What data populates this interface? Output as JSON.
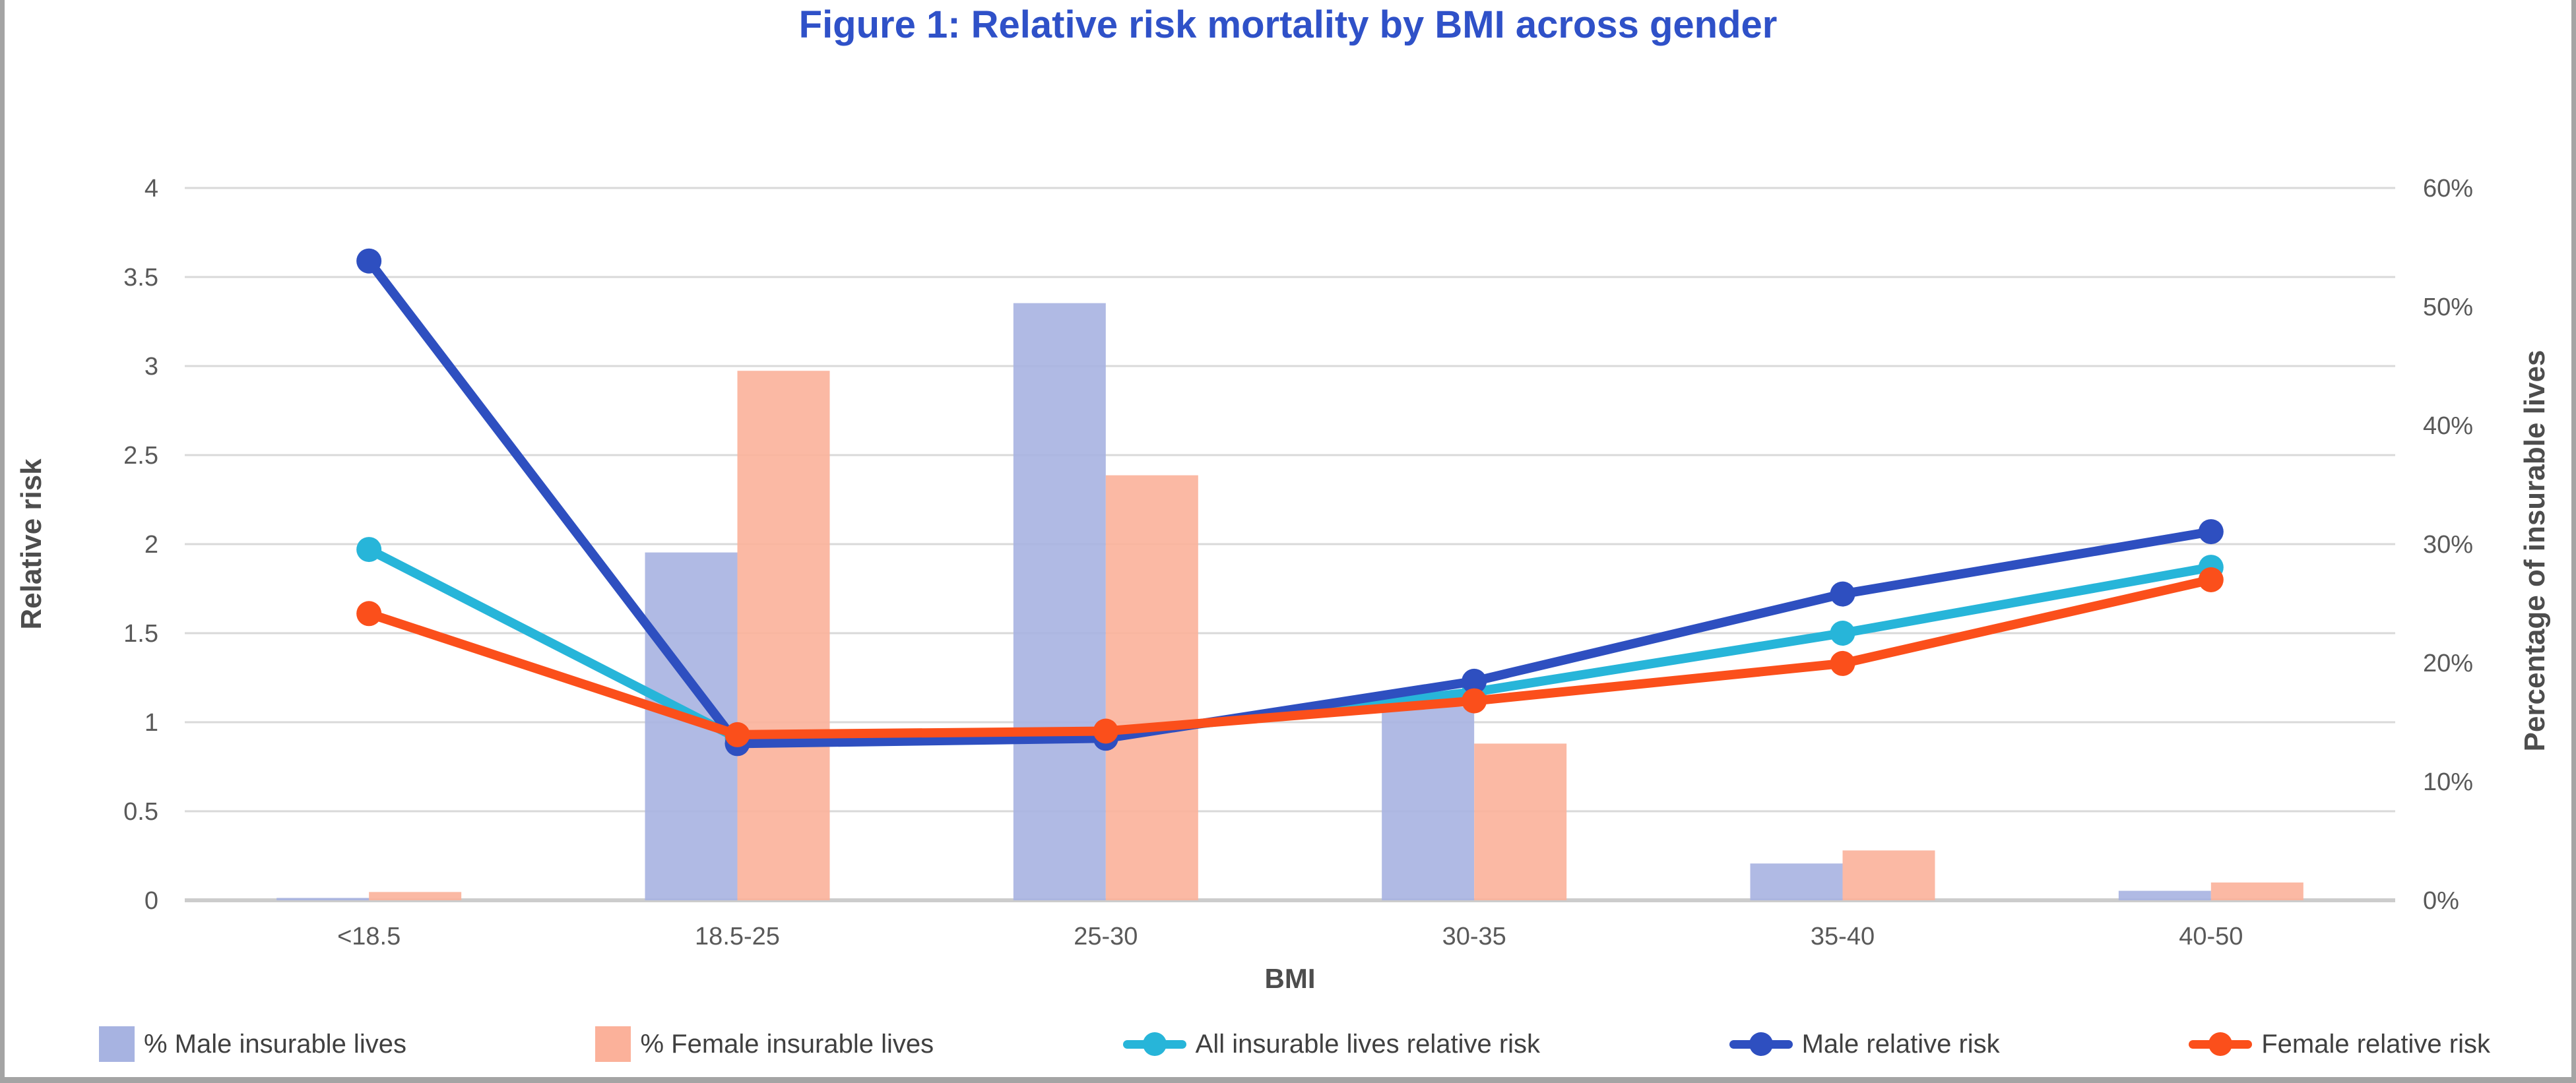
{
  "title": "Figure 1: Relative risk mortality by BMI across gender",
  "colors": {
    "title_text": "#2f51c8",
    "male_bar": "#a7b3e1",
    "female_bar": "#fbb19a",
    "all_lives_line": "#27b5d9",
    "male_line": "#2e4fc0",
    "female_line": "#fb4f1b",
    "gridline": "#d9d9d9",
    "baseline": "#cccccc",
    "tick_text": "#595959",
    "axis_title_text": "#4d4d4d",
    "frame_border": "#a4a4a4"
  },
  "chart_data": {
    "type": "combo-bar-line",
    "categories": [
      "<18.5",
      "18.5-25",
      "25-30",
      "30-35",
      "35-40",
      "40-50"
    ],
    "bar_series": [
      {
        "name": "% Male insurable lives",
        "axis": "right",
        "color": "#a7b3e1",
        "values": [
          0.2,
          29.3,
          50.3,
          16.3,
          3.1,
          0.8
        ]
      },
      {
        "name": "% Female insurable lives",
        "axis": "right",
        "color": "#fbb19a",
        "values": [
          0.7,
          44.6,
          35.8,
          13.2,
          4.2,
          1.5
        ]
      }
    ],
    "line_series": [
      {
        "name": "All insurable lives relative risk",
        "axis": "left",
        "color": "#27b5d9",
        "values": [
          1.97,
          0.91,
          0.93,
          1.17,
          1.5,
          1.87
        ]
      },
      {
        "name": "Male relative risk",
        "axis": "left",
        "color": "#2e4fc0",
        "values": [
          3.59,
          0.88,
          0.91,
          1.23,
          1.72,
          2.07
        ]
      },
      {
        "name": "Female relative risk",
        "axis": "left",
        "color": "#fb4f1b",
        "values": [
          1.61,
          0.93,
          0.95,
          1.12,
          1.33,
          1.8
        ]
      }
    ],
    "left_axis": {
      "title": "Relative risk",
      "min": 0,
      "max": 4,
      "tick_labels": [
        "0",
        "0.5",
        "1",
        "1.5",
        "2",
        "2.5",
        "3",
        "3.5",
        "4"
      ]
    },
    "right_axis": {
      "title": "Percentage of insurable lives",
      "min": 0,
      "max": 60,
      "tick_labels": [
        "0%",
        "10%",
        "20%",
        "30%",
        "40%",
        "50%",
        "60%"
      ]
    },
    "x_axis": {
      "title": "BMI"
    },
    "grid": "horizontal-on",
    "legend_position": "bottom"
  },
  "legend": [
    {
      "type": "bar",
      "color": "#a7b3e1",
      "label": "% Male insurable lives"
    },
    {
      "type": "bar",
      "color": "#fbb19a",
      "label": "% Female insurable lives"
    },
    {
      "type": "line",
      "color": "#27b5d9",
      "label": "All insurable lives relative risk"
    },
    {
      "type": "line",
      "color": "#2e4fc0",
      "label": "Male relative risk"
    },
    {
      "type": "line",
      "color": "#fb4f1b",
      "label": "Female relative risk"
    }
  ]
}
